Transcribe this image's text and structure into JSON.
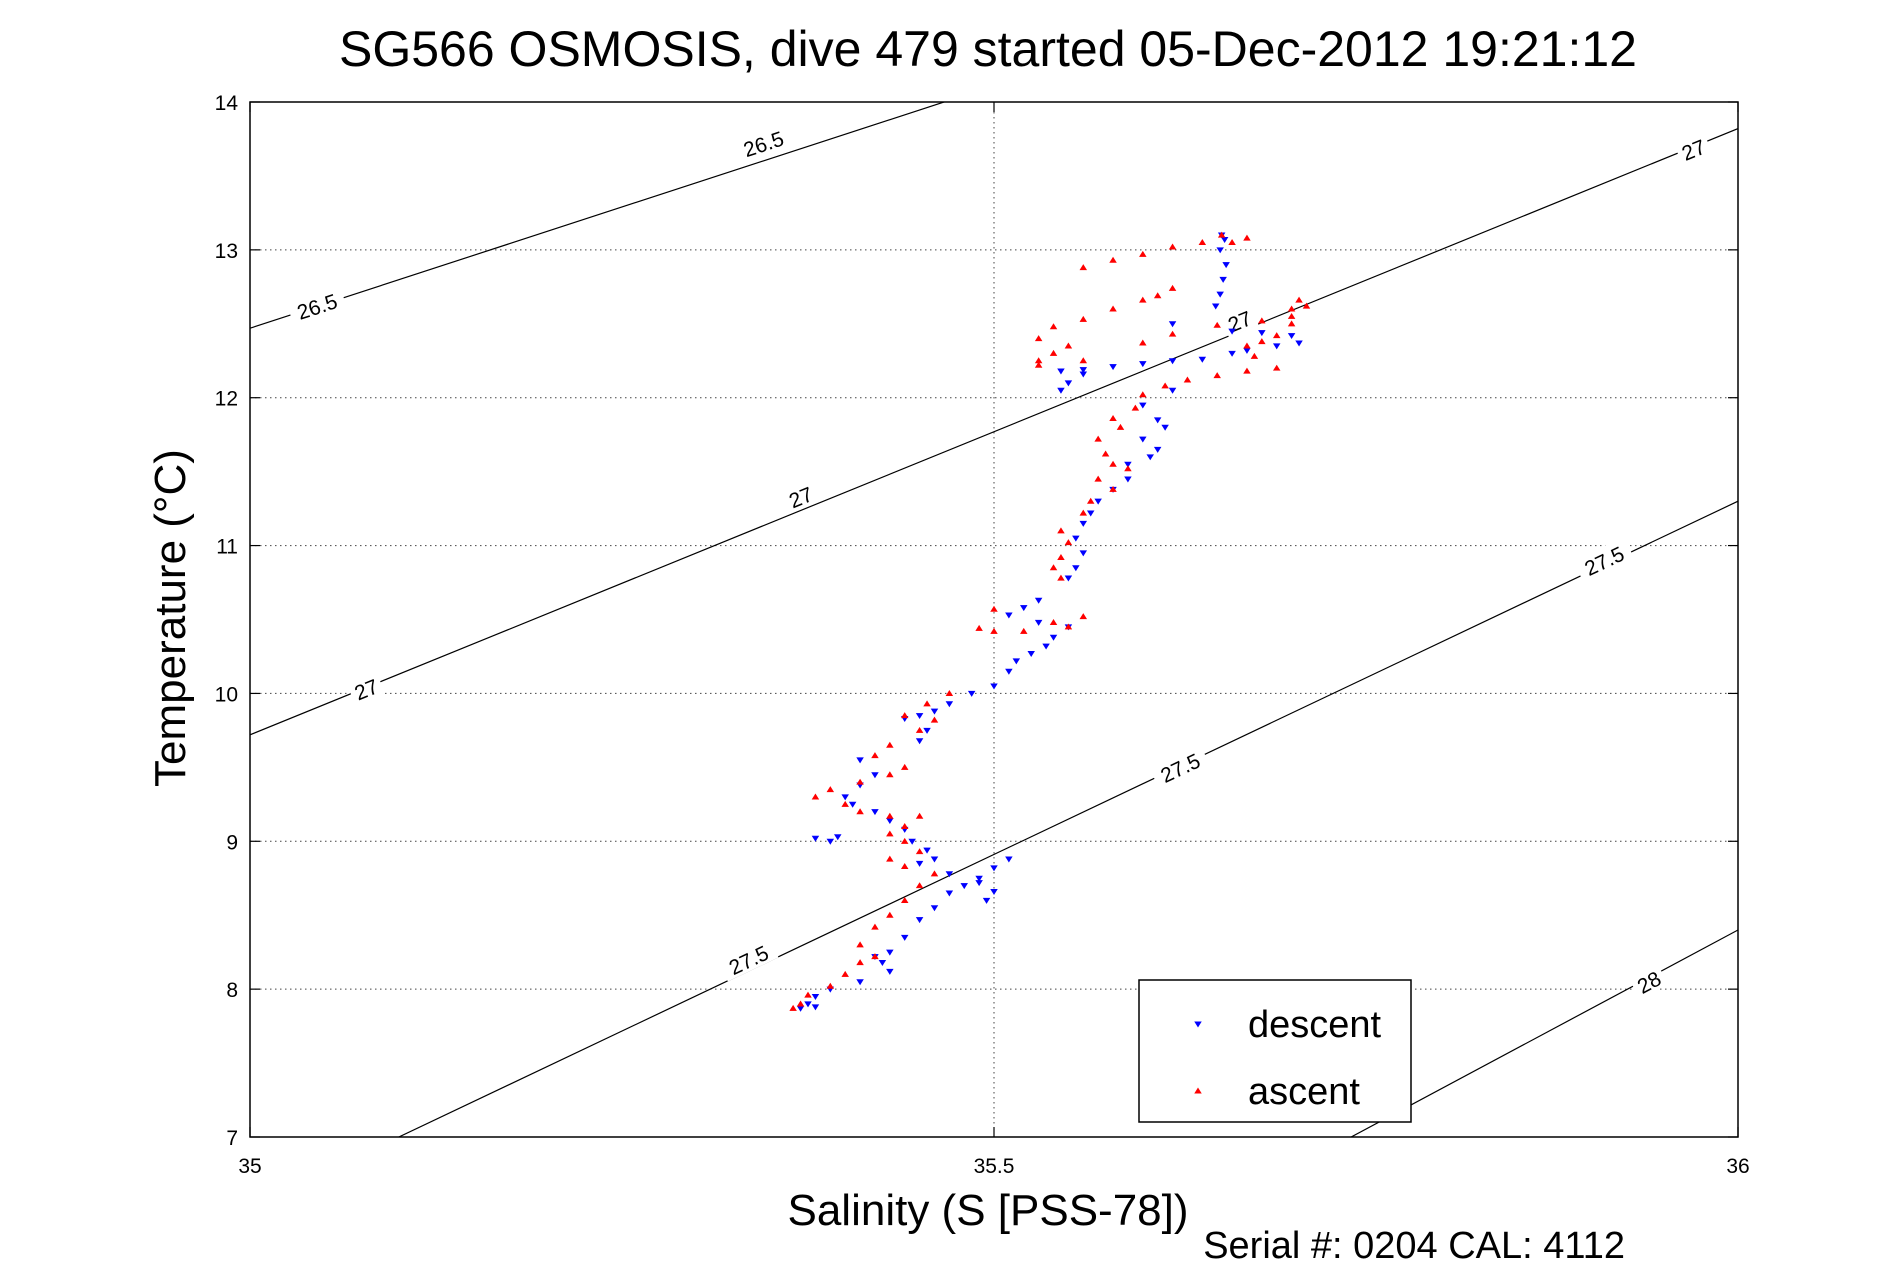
{
  "chart_data": {
    "type": "scatter",
    "title": "SG566 OSMOSIS, dive 479 started 05-Dec-2012 19:21:12",
    "xlabel": "Salinity (S [PSS-78])",
    "ylabel": "Temperature (°C)",
    "xlim": [
      35,
      36
    ],
    "ylim": [
      7,
      14
    ],
    "x_ticks": [
      35,
      35.5,
      36
    ],
    "x_tick_labels": [
      "35",
      "35.5",
      "36"
    ],
    "y_ticks": [
      7,
      8,
      9,
      10,
      11,
      12,
      13,
      14
    ],
    "y_tick_labels": [
      "7",
      "8",
      "9",
      "10",
      "11",
      "12",
      "13",
      "14"
    ],
    "grid": true,
    "legend_position": "bottom-right",
    "footer": "Serial #: 0204  CAL: 4112",
    "density_contours": [
      {
        "label": "26.5",
        "points": [
          [
            35.0,
            12.47
          ],
          [
            36.0,
            15.75
          ]
        ],
        "label_positions": [
          [
            35.045,
            12.62
          ],
          [
            35.345,
            13.72
          ]
        ]
      },
      {
        "label": "27",
        "points": [
          [
            35.0,
            9.72
          ],
          [
            36.0,
            13.82
          ]
        ],
        "label_positions": [
          [
            35.078,
            10.03
          ],
          [
            35.37,
            11.33
          ],
          [
            35.665,
            12.52
          ],
          [
            35.97,
            13.68
          ]
        ]
      },
      {
        "label": "27.5",
        "points": [
          [
            35.1,
            7.0
          ],
          [
            36.0,
            11.3
          ]
        ],
        "label_positions": [
          [
            35.335,
            8.2
          ],
          [
            35.625,
            9.5
          ],
          [
            35.91,
            10.9
          ]
        ]
      },
      {
        "label": "28",
        "points": [
          [
            35.74,
            7.0
          ],
          [
            36.0,
            8.4
          ]
        ],
        "label_positions": [
          [
            35.94,
            8.05
          ]
        ]
      }
    ],
    "series": [
      {
        "name": "descent",
        "color": "#0000ff",
        "marker": "triangle-down",
        "points": [
          [
            35.653,
            13.1
          ],
          [
            35.655,
            13.07
          ],
          [
            35.652,
            13.0
          ],
          [
            35.656,
            12.9
          ],
          [
            35.654,
            12.8
          ],
          [
            35.652,
            12.7
          ],
          [
            35.649,
            12.62
          ],
          [
            35.62,
            12.5
          ],
          [
            35.66,
            12.45
          ],
          [
            35.68,
            12.44
          ],
          [
            35.7,
            12.42
          ],
          [
            35.705,
            12.37
          ],
          [
            35.69,
            12.35
          ],
          [
            35.67,
            12.32
          ],
          [
            35.66,
            12.3
          ],
          [
            35.64,
            12.26
          ],
          [
            35.62,
            12.25
          ],
          [
            35.6,
            12.23
          ],
          [
            35.58,
            12.21
          ],
          [
            35.56,
            12.19
          ],
          [
            35.545,
            12.18
          ],
          [
            35.56,
            12.16
          ],
          [
            35.55,
            12.1
          ],
          [
            35.545,
            12.05
          ],
          [
            35.62,
            12.05
          ],
          [
            35.6,
            11.95
          ],
          [
            35.61,
            11.85
          ],
          [
            35.615,
            11.8
          ],
          [
            35.6,
            11.72
          ],
          [
            35.61,
            11.65
          ],
          [
            35.605,
            11.6
          ],
          [
            35.59,
            11.55
          ],
          [
            35.59,
            11.45
          ],
          [
            35.58,
            11.38
          ],
          [
            35.57,
            11.3
          ],
          [
            35.565,
            11.22
          ],
          [
            35.56,
            11.15
          ],
          [
            35.555,
            11.05
          ],
          [
            35.56,
            10.95
          ],
          [
            35.555,
            10.85
          ],
          [
            35.55,
            10.78
          ],
          [
            35.53,
            10.63
          ],
          [
            35.52,
            10.58
          ],
          [
            35.51,
            10.53
          ],
          [
            35.53,
            10.48
          ],
          [
            35.55,
            10.45
          ],
          [
            35.54,
            10.38
          ],
          [
            35.535,
            10.32
          ],
          [
            35.525,
            10.27
          ],
          [
            35.515,
            10.22
          ],
          [
            35.51,
            10.15
          ],
          [
            35.5,
            10.05
          ],
          [
            35.485,
            10.0
          ],
          [
            35.47,
            9.93
          ],
          [
            35.46,
            9.88
          ],
          [
            35.45,
            9.85
          ],
          [
            35.44,
            9.83
          ],
          [
            35.455,
            9.75
          ],
          [
            35.45,
            9.68
          ],
          [
            35.41,
            9.55
          ],
          [
            35.42,
            9.45
          ],
          [
            35.41,
            9.38
          ],
          [
            35.4,
            9.3
          ],
          [
            35.405,
            9.25
          ],
          [
            35.42,
            9.2
          ],
          [
            35.43,
            9.14
          ],
          [
            35.44,
            9.08
          ],
          [
            35.395,
            9.03
          ],
          [
            35.39,
            9.0
          ],
          [
            35.38,
            9.02
          ],
          [
            35.445,
            9.0
          ],
          [
            35.455,
            8.94
          ],
          [
            35.46,
            8.88
          ],
          [
            35.45,
            8.85
          ],
          [
            35.47,
            8.78
          ],
          [
            35.49,
            8.72
          ],
          [
            35.5,
            8.66
          ],
          [
            35.495,
            8.6
          ],
          [
            35.51,
            8.88
          ],
          [
            35.5,
            8.82
          ],
          [
            35.49,
            8.75
          ],
          [
            35.48,
            8.7
          ],
          [
            35.47,
            8.65
          ],
          [
            35.46,
            8.55
          ],
          [
            35.45,
            8.47
          ],
          [
            35.44,
            8.35
          ],
          [
            35.43,
            8.25
          ],
          [
            35.42,
            8.22
          ],
          [
            35.425,
            8.18
          ],
          [
            35.43,
            8.12
          ],
          [
            35.41,
            8.05
          ],
          [
            35.39,
            8.0
          ],
          [
            35.38,
            7.95
          ],
          [
            35.375,
            7.9
          ],
          [
            35.37,
            7.87
          ],
          [
            35.38,
            7.88
          ]
        ]
      },
      {
        "name": "ascent",
        "color": "#ff0000",
        "marker": "triangle-up",
        "points": [
          [
            35.653,
            13.1
          ],
          [
            35.67,
            13.08
          ],
          [
            35.66,
            13.05
          ],
          [
            35.64,
            13.05
          ],
          [
            35.62,
            13.02
          ],
          [
            35.6,
            12.97
          ],
          [
            35.58,
            12.93
          ],
          [
            35.56,
            12.88
          ],
          [
            35.62,
            12.74
          ],
          [
            35.61,
            12.69
          ],
          [
            35.6,
            12.66
          ],
          [
            35.58,
            12.6
          ],
          [
            35.56,
            12.53
          ],
          [
            35.54,
            12.48
          ],
          [
            35.53,
            12.4
          ],
          [
            35.55,
            12.35
          ],
          [
            35.54,
            12.3
          ],
          [
            35.53,
            12.25
          ],
          [
            35.53,
            12.22
          ],
          [
            35.56,
            12.25
          ],
          [
            35.6,
            12.37
          ],
          [
            35.62,
            12.43
          ],
          [
            35.65,
            12.49
          ],
          [
            35.68,
            12.52
          ],
          [
            35.7,
            12.55
          ],
          [
            35.7,
            12.6
          ],
          [
            35.705,
            12.66
          ],
          [
            35.71,
            12.62
          ],
          [
            35.7,
            12.5
          ],
          [
            35.69,
            12.42
          ],
          [
            35.68,
            12.38
          ],
          [
            35.67,
            12.35
          ],
          [
            35.675,
            12.28
          ],
          [
            35.69,
            12.2
          ],
          [
            35.67,
            12.18
          ],
          [
            35.65,
            12.15
          ],
          [
            35.63,
            12.12
          ],
          [
            35.615,
            12.08
          ],
          [
            35.6,
            12.02
          ],
          [
            35.595,
            11.93
          ],
          [
            35.58,
            11.86
          ],
          [
            35.585,
            11.8
          ],
          [
            35.57,
            11.72
          ],
          [
            35.575,
            11.62
          ],
          [
            35.58,
            11.55
          ],
          [
            35.59,
            11.52
          ],
          [
            35.57,
            11.45
          ],
          [
            35.58,
            11.38
          ],
          [
            35.565,
            11.3
          ],
          [
            35.56,
            11.22
          ],
          [
            35.545,
            11.1
          ],
          [
            35.55,
            11.02
          ],
          [
            35.545,
            10.92
          ],
          [
            35.54,
            10.85
          ],
          [
            35.545,
            10.78
          ],
          [
            35.55,
            10.45
          ],
          [
            35.56,
            10.52
          ],
          [
            35.54,
            10.48
          ],
          [
            35.52,
            10.42
          ],
          [
            35.5,
            10.42
          ],
          [
            35.49,
            10.44
          ],
          [
            35.5,
            10.57
          ],
          [
            35.47,
            10.0
          ],
          [
            35.455,
            9.93
          ],
          [
            35.44,
            9.85
          ],
          [
            35.46,
            9.82
          ],
          [
            35.45,
            9.75
          ],
          [
            35.43,
            9.65
          ],
          [
            35.42,
            9.58
          ],
          [
            35.44,
            9.5
          ],
          [
            35.43,
            9.45
          ],
          [
            35.41,
            9.4
          ],
          [
            35.39,
            9.35
          ],
          [
            35.38,
            9.3
          ],
          [
            35.4,
            9.25
          ],
          [
            35.41,
            9.2
          ],
          [
            35.43,
            9.17
          ],
          [
            35.45,
            9.17
          ],
          [
            35.44,
            9.1
          ],
          [
            35.43,
            9.05
          ],
          [
            35.44,
            9.0
          ],
          [
            35.45,
            8.93
          ],
          [
            35.43,
            8.88
          ],
          [
            35.44,
            8.83
          ],
          [
            35.46,
            8.78
          ],
          [
            35.45,
            8.7
          ],
          [
            35.44,
            8.6
          ],
          [
            35.43,
            8.5
          ],
          [
            35.42,
            8.42
          ],
          [
            35.41,
            8.3
          ],
          [
            35.42,
            8.22
          ],
          [
            35.41,
            8.18
          ],
          [
            35.4,
            8.1
          ],
          [
            35.39,
            8.02
          ],
          [
            35.375,
            7.96
          ],
          [
            35.37,
            7.9
          ],
          [
            35.365,
            7.87
          ]
        ]
      }
    ]
  }
}
